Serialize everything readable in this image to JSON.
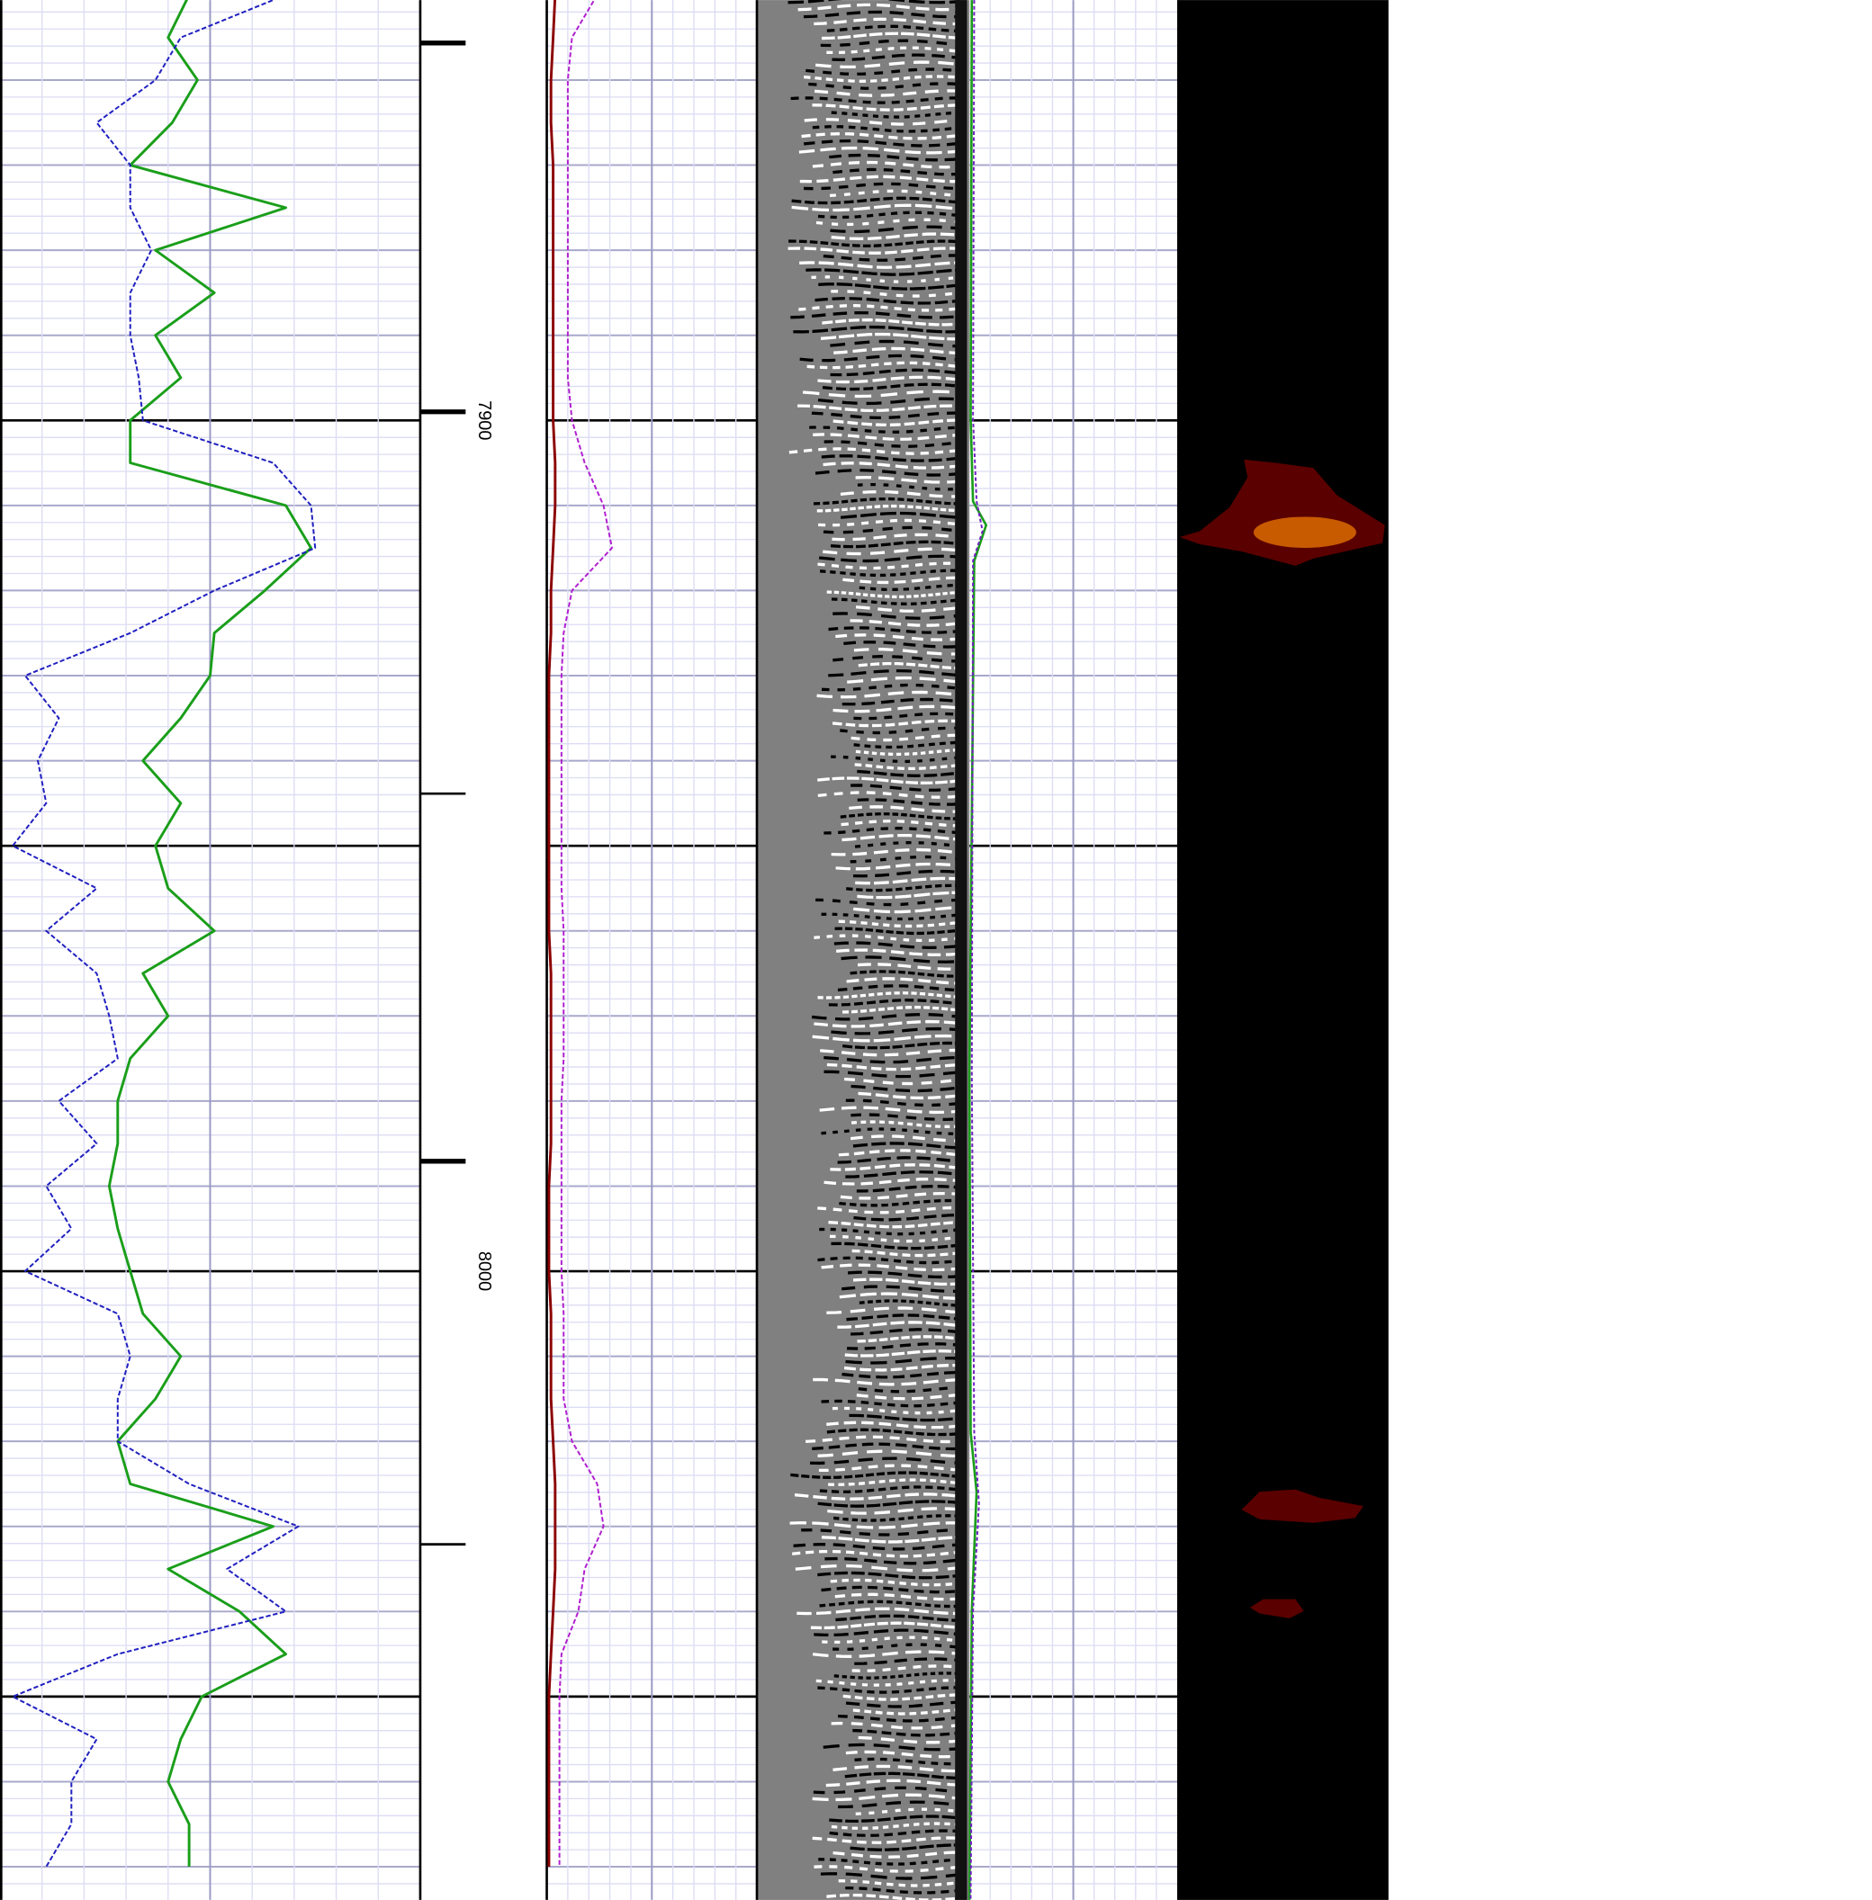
{
  "chart_data": [
    {
      "type": "line",
      "xlim": [
        0,
        100
      ],
      "ylim": [
        7850.6,
        8073.9
      ],
      "yticks": [
        7900,
        8000
      ],
      "y": [
        7850,
        7855,
        7860,
        7865,
        7870,
        7875,
        7880,
        7885,
        7890,
        7895,
        7900,
        7905,
        7910,
        7915,
        7920,
        7925,
        7930,
        7935,
        7940,
        7945,
        7950,
        7955,
        7960,
        7965,
        7970,
        7975,
        7980,
        7985,
        7990,
        7995,
        8000,
        8005,
        8010,
        8015,
        8020,
        8025,
        8030,
        8035,
        8040,
        8045,
        8050,
        8055,
        8060,
        8065,
        8070
      ],
      "series": [
        {
          "color": "#1a9e1a",
          "dash": false,
          "values": [
            45,
            40,
            47,
            41,
            31,
            68,
            37,
            51,
            37,
            43,
            31,
            31,
            68,
            74,
            63,
            51,
            50,
            43,
            34,
            43,
            37,
            40,
            51,
            34,
            40,
            31,
            28,
            28,
            26,
            28,
            31,
            34,
            43,
            37,
            28,
            31,
            65,
            40,
            57,
            68,
            48,
            43,
            40,
            45,
            45
          ]
        },
        {
          "color": "#2020c0",
          "dash": true,
          "values": [
            68,
            43,
            37,
            23,
            31,
            31,
            36,
            31,
            31,
            33,
            34,
            65,
            74,
            75,
            51,
            31,
            6,
            14,
            9,
            11,
            3,
            23,
            11,
            23,
            26,
            28,
            14,
            23,
            11,
            17,
            6,
            28,
            31,
            28,
            28,
            45,
            71,
            54,
            68,
            28,
            3,
            23,
            17,
            17,
            11
          ]
        }
      ]
    },
    {
      "type": "line",
      "xlim": [
        0,
        100
      ],
      "ylim": [
        7850.6,
        8073.9
      ],
      "y": [
        7850,
        7855,
        7860,
        7865,
        7870,
        7875,
        7880,
        7885,
        7890,
        7895,
        7900,
        7905,
        7910,
        7915,
        7920,
        7925,
        7930,
        7935,
        7940,
        7945,
        7950,
        7955,
        7960,
        7965,
        7970,
        7975,
        7980,
        7985,
        7990,
        7995,
        8000,
        8005,
        8010,
        8015,
        8020,
        8025,
        8030,
        8035,
        8040,
        8045,
        8050,
        8055,
        8060,
        8065,
        8070
      ],
      "series": [
        {
          "color": "#8b0000",
          "dash": false,
          "values": [
            4,
            3,
            2,
            2,
            3,
            3,
            3,
            3,
            3,
            3,
            3,
            4,
            4,
            3,
            2,
            2,
            1,
            1,
            1,
            1,
            1,
            1,
            1,
            2,
            2,
            2,
            2,
            2,
            1,
            1,
            1,
            2,
            2,
            2,
            3,
            4,
            4,
            4,
            3,
            2,
            1,
            1,
            1,
            1,
            1
          ]
        },
        {
          "color": "#b020d0",
          "dash": true,
          "values": [
            24,
            12,
            10,
            10,
            10,
            10,
            10,
            10,
            10,
            10,
            12,
            18,
            27,
            31,
            12,
            8,
            7,
            7,
            7,
            7,
            7,
            7,
            8,
            8,
            8,
            8,
            7,
            7,
            7,
            7,
            7,
            8,
            8,
            8,
            12,
            24,
            27,
            18,
            15,
            7,
            6,
            6,
            6,
            6,
            6
          ]
        }
      ]
    }
  ]
}
